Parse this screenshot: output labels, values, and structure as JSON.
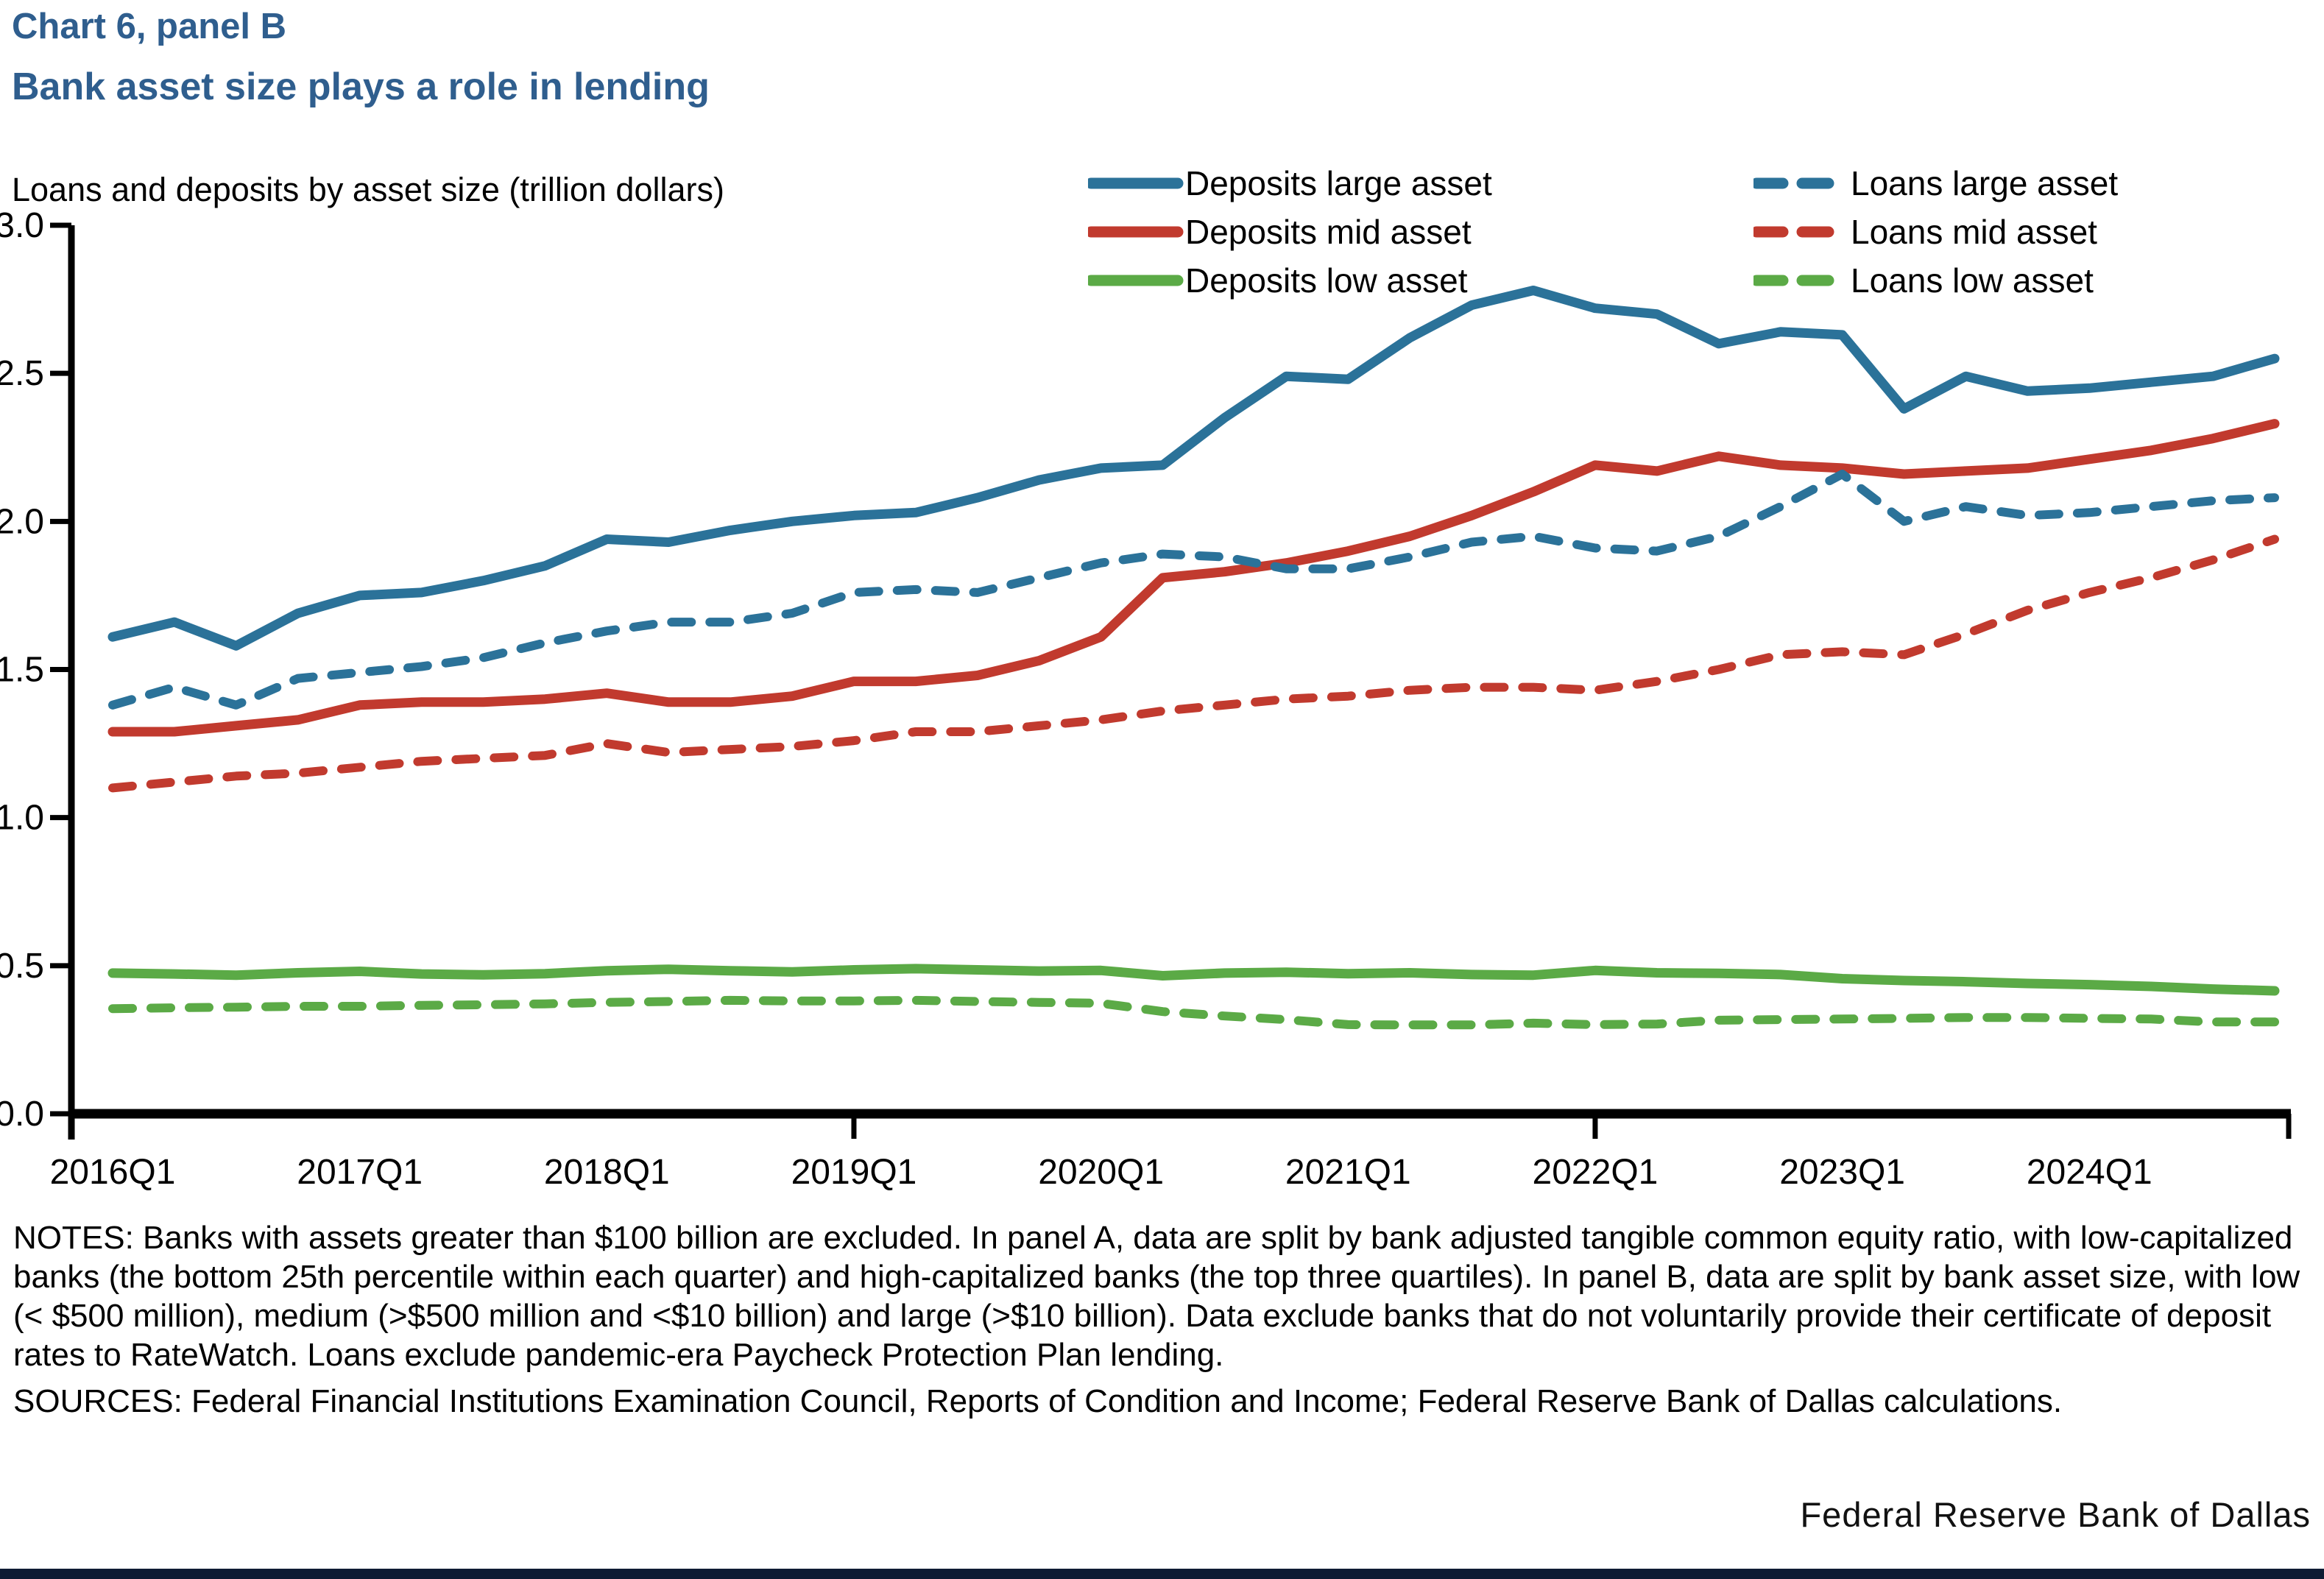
{
  "header": {
    "kicker": "Chart 6, panel B",
    "title": "Bank asset size plays a role in lending"
  },
  "chart": {
    "axis_title": "Loans and deposits by asset size (trillion dollars)"
  },
  "colors": {
    "title_blue": "#2F5E8E",
    "series_blue": "#2B7299",
    "series_red": "#C13A2E",
    "series_green": "#5BAA46",
    "axis_black": "#000000",
    "bottom_bar": "#0E1B33"
  },
  "chart_data": {
    "type": "line",
    "title": "Loans and deposits by asset size (trillion dollars)",
    "xlabel": "",
    "ylabel": "trillion dollars",
    "ylim": [
      0.0,
      3.0
    ],
    "grid": false,
    "legend_position": "top",
    "x_labels": [
      "2016Q1",
      "2016Q2",
      "2016Q3",
      "2016Q4",
      "2017Q1",
      "2017Q2",
      "2017Q3",
      "2017Q4",
      "2018Q1",
      "2018Q2",
      "2018Q3",
      "2018Q4",
      "2019Q1",
      "2019Q2",
      "2019Q3",
      "2019Q4",
      "2020Q1",
      "2020Q2",
      "2020Q3",
      "2020Q4",
      "2021Q1",
      "2021Q2",
      "2021Q3",
      "2021Q4",
      "2022Q1",
      "2022Q2",
      "2022Q3",
      "2022Q4",
      "2023Q1",
      "2023Q2",
      "2023Q3",
      "2023Q4",
      "2024Q1",
      "2024Q2",
      "2024Q3",
      "2024Q4"
    ],
    "x_axis_tick_labels": [
      "2016Q1",
      "2017Q1",
      "2018Q1",
      "2019Q1",
      "2020Q1",
      "2021Q1",
      "2022Q1",
      "2023Q1",
      "2024Q1"
    ],
    "x_tickmark_indices": [
      12,
      24
    ],
    "y_ticks": [
      {
        "v": 0.0,
        "label": "0.0"
      },
      {
        "v": 0.5,
        "label": "0.5"
      },
      {
        "v": 1.0,
        "label": "1.0"
      },
      {
        "v": 1.5,
        "label": "1.5"
      },
      {
        "v": 2.0,
        "label": "2.0"
      },
      {
        "v": 2.5,
        "label": "2.5"
      },
      {
        "v": 3.0,
        "label": "3.0"
      }
    ],
    "series": [
      {
        "name": "Deposits large asset",
        "color": "#2B7299",
        "style": "solid",
        "values": [
          1.61,
          1.66,
          1.58,
          1.69,
          1.75,
          1.76,
          1.8,
          1.85,
          1.94,
          1.93,
          1.97,
          2.0,
          2.02,
          2.03,
          2.08,
          2.14,
          2.18,
          2.19,
          2.35,
          2.49,
          2.48,
          2.62,
          2.73,
          2.78,
          2.72,
          2.7,
          2.6,
          2.64,
          2.63,
          2.38,
          2.49,
          2.44,
          2.45,
          2.47,
          2.49,
          2.55
        ]
      },
      {
        "name": "Deposits mid asset",
        "color": "#C13A2E",
        "style": "solid",
        "values": [
          1.29,
          1.29,
          1.31,
          1.33,
          1.38,
          1.39,
          1.39,
          1.4,
          1.42,
          1.39,
          1.39,
          1.41,
          1.46,
          1.46,
          1.48,
          1.53,
          1.61,
          1.81,
          1.83,
          1.86,
          1.9,
          1.95,
          2.02,
          2.1,
          2.19,
          2.17,
          2.22,
          2.19,
          2.18,
          2.16,
          2.17,
          2.18,
          2.21,
          2.24,
          2.28,
          2.33
        ]
      },
      {
        "name": "Deposits low asset",
        "color": "#5BAA46",
        "style": "solid",
        "values": [
          0.475,
          0.472,
          0.468,
          0.476,
          0.481,
          0.472,
          0.469,
          0.473,
          0.483,
          0.488,
          0.483,
          0.479,
          0.486,
          0.49,
          0.486,
          0.482,
          0.484,
          0.466,
          0.475,
          0.478,
          0.473,
          0.476,
          0.47,
          0.468,
          0.484,
          0.476,
          0.474,
          0.47,
          0.456,
          0.45,
          0.446,
          0.44,
          0.436,
          0.43,
          0.421,
          0.415
        ]
      },
      {
        "name": "Loans large asset",
        "color": "#2B7299",
        "style": "dashed",
        "values": [
          1.38,
          1.44,
          1.38,
          1.47,
          1.49,
          1.51,
          1.54,
          1.59,
          1.63,
          1.66,
          1.66,
          1.69,
          1.76,
          1.77,
          1.76,
          1.81,
          1.86,
          1.89,
          1.88,
          1.84,
          1.84,
          1.88,
          1.93,
          1.95,
          1.91,
          1.9,
          1.95,
          2.05,
          2.16,
          2.0,
          2.05,
          2.02,
          2.03,
          2.05,
          2.07,
          2.08
        ]
      },
      {
        "name": "Loans mid asset",
        "color": "#C13A2E",
        "style": "dashed",
        "values": [
          1.1,
          1.12,
          1.14,
          1.15,
          1.17,
          1.19,
          1.2,
          1.21,
          1.25,
          1.22,
          1.23,
          1.24,
          1.26,
          1.29,
          1.29,
          1.31,
          1.33,
          1.36,
          1.38,
          1.4,
          1.41,
          1.43,
          1.44,
          1.44,
          1.43,
          1.46,
          1.5,
          1.55,
          1.56,
          1.55,
          1.62,
          1.7,
          1.76,
          1.81,
          1.87,
          1.94
        ]
      },
      {
        "name": "Loans low asset",
        "color": "#5BAA46",
        "style": "dashed",
        "values": [
          0.355,
          0.358,
          0.36,
          0.363,
          0.363,
          0.366,
          0.368,
          0.371,
          0.376,
          0.379,
          0.383,
          0.381,
          0.381,
          0.383,
          0.379,
          0.376,
          0.373,
          0.345,
          0.33,
          0.318,
          0.301,
          0.3,
          0.3,
          0.306,
          0.301,
          0.303,
          0.316,
          0.318,
          0.32,
          0.322,
          0.325,
          0.325,
          0.322,
          0.32,
          0.31,
          0.31
        ]
      }
    ]
  },
  "notes": {
    "notes_text": "NOTES: Banks with assets greater than $100 billion are excluded. In panel A, data are split by bank adjusted tangible common equity ratio, with low-capitalized banks (the bottom 25th percentile within each quarter) and high-capitalized banks (the top three quartiles). In panel B, data are split by bank asset size, with low (< $500 million), medium (>$500 million and <$10 billion) and large (>$10 billion). Data exclude banks that do not voluntarily provide their certificate of deposit rates to RateWatch. Loans exclude pandemic-era Paycheck Protection Plan lending.",
    "sources_text": "SOURCES: Federal Financial Institutions Examination Council, Reports of Condition and Income; Federal Reserve Bank of Dallas calculations."
  },
  "footer": {
    "brand": "Federal Reserve Bank of Dallas"
  }
}
